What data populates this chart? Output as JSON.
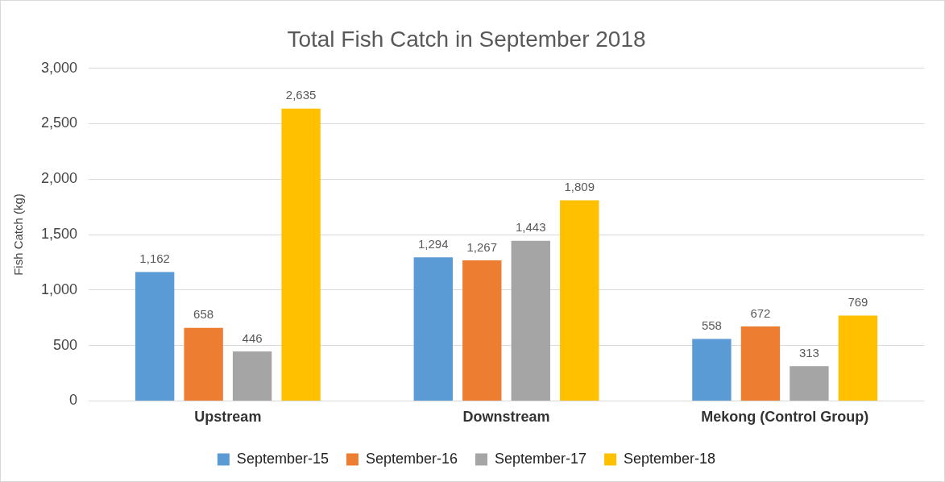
{
  "chart_data": {
    "type": "bar",
    "title": "Total Fish Catch in September 2018",
    "ylabel": "Fish Catch (kg)",
    "categories": [
      "Upstream",
      "Downstream",
      "Mekong (Control Group)"
    ],
    "series": [
      {
        "name": "September-15",
        "color": "#5b9bd5",
        "values": [
          1162,
          1294,
          558
        ],
        "value_labels": [
          "1,162",
          "1,294",
          "558"
        ]
      },
      {
        "name": "September-16",
        "color": "#ed7d31",
        "values": [
          658,
          1267,
          672
        ],
        "value_labels": [
          "658",
          "1,267",
          "672"
        ]
      },
      {
        "name": "September-17",
        "color": "#a5a5a5",
        "values": [
          446,
          1443,
          313
        ],
        "value_labels": [
          "446",
          "1,443",
          "313"
        ]
      },
      {
        "name": "September-18",
        "color": "#ffc000",
        "values": [
          2635,
          1809,
          769
        ],
        "value_labels": [
          "2,635",
          "1,809",
          "769"
        ]
      }
    ],
    "ylim": [
      0,
      3000
    ],
    "yticks": [
      {
        "value": 0,
        "label": "0"
      },
      {
        "value": 500,
        "label": "500"
      },
      {
        "value": 1000,
        "label": "1,000"
      },
      {
        "value": 1500,
        "label": "1,500"
      },
      {
        "value": 2000,
        "label": "2,000"
      },
      {
        "value": 2500,
        "label": "2,500"
      },
      {
        "value": 3000,
        "label": "3,000"
      }
    ],
    "grid": "y",
    "legend": "bottom"
  }
}
